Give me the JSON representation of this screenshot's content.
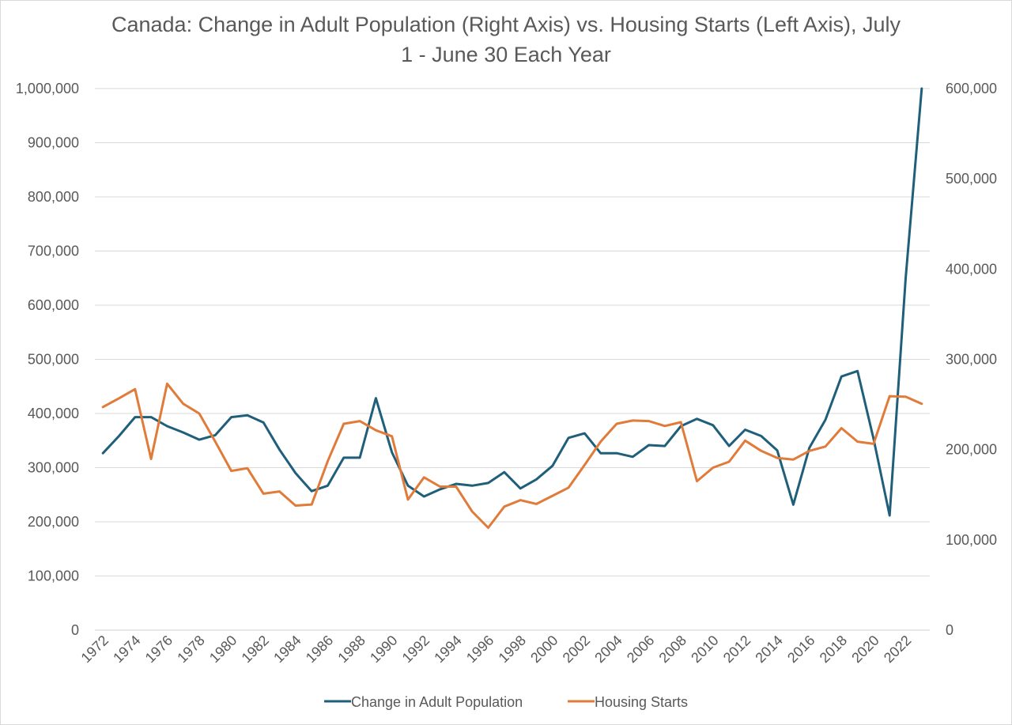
{
  "chart_data": {
    "type": "line",
    "title": "Canada: Change in Adult Population (Right Axis) vs. Housing Starts (Left Axis), July 1 - June 30 Each Year",
    "title_lines": [
      "Canada: Change in Adult Population (Right Axis) vs. Housing Starts (Left Axis), July",
      "1  - June 30 Each Year"
    ],
    "x": [
      1972,
      1973,
      1974,
      1975,
      1976,
      1977,
      1978,
      1979,
      1980,
      1981,
      1982,
      1983,
      1984,
      1985,
      1986,
      1987,
      1988,
      1989,
      1990,
      1991,
      1992,
      1993,
      1994,
      1995,
      1996,
      1997,
      1998,
      1999,
      2000,
      2001,
      2002,
      2003,
      2004,
      2005,
      2006,
      2007,
      2008,
      2009,
      2010,
      2011,
      2012,
      2013,
      2014,
      2015,
      2016,
      2017,
      2018,
      2019,
      2020,
      2021,
      2022,
      2023
    ],
    "x_tick_labels": [
      "1972",
      "1974",
      "1976",
      "1978",
      "1980",
      "1982",
      "1984",
      "1986",
      "1988",
      "1990",
      "1992",
      "1994",
      "1996",
      "1998",
      "2000",
      "2002",
      "2004",
      "2006",
      "2008",
      "2010",
      "2012",
      "2014",
      "2016",
      "2018",
      "2020",
      "2022"
    ],
    "y_left": {
      "min": 0,
      "max": 1000000,
      "ticks": [
        "0",
        "100,000",
        "200,000",
        "300,000",
        "400,000",
        "500,000",
        "600,000",
        "700,000",
        "800,000",
        "900,000",
        "1,000,000"
      ]
    },
    "y_right": {
      "min": 0,
      "max": 600000,
      "ticks": [
        "0",
        "100,000",
        "200,000",
        "300,000",
        "400,000",
        "500,000",
        "600,000"
      ]
    },
    "grid": true,
    "legend_position": "bottom",
    "series": [
      {
        "name": "Change in Adult Population",
        "axis": "right",
        "color": "#1f5f7a",
        "values": [
          196000,
          215000,
          236000,
          236000,
          226000,
          219000,
          211000,
          216000,
          236000,
          238000,
          230000,
          200000,
          174000,
          154000,
          160000,
          191000,
          191000,
          257000,
          197000,
          160000,
          148000,
          156000,
          162000,
          160000,
          163000,
          175000,
          157000,
          167000,
          182000,
          213000,
          218000,
          196000,
          196000,
          192000,
          205000,
          204000,
          226000,
          234000,
          227000,
          204000,
          222000,
          215000,
          199000,
          139000,
          202000,
          233000,
          281000,
          287000,
          212000,
          127000,
          390000,
          600000
        ]
      },
      {
        "name": "Housing Starts",
        "axis": "left",
        "color": "#e07b39",
        "values": [
          412000,
          428000,
          445000,
          316000,
          455000,
          418000,
          400000,
          348000,
          294000,
          299000,
          252000,
          256000,
          230000,
          232000,
          312000,
          381000,
          386000,
          369000,
          358000,
          241000,
          282000,
          265000,
          265000,
          219000,
          189000,
          228000,
          240000,
          233000,
          248000,
          263000,
          305000,
          348000,
          381000,
          387000,
          386000,
          377000,
          384000,
          275000,
          300000,
          311000,
          350000,
          331000,
          318000,
          315000,
          331000,
          339000,
          373000,
          348000,
          344000,
          432000,
          431000,
          418000
        ]
      }
    ]
  }
}
